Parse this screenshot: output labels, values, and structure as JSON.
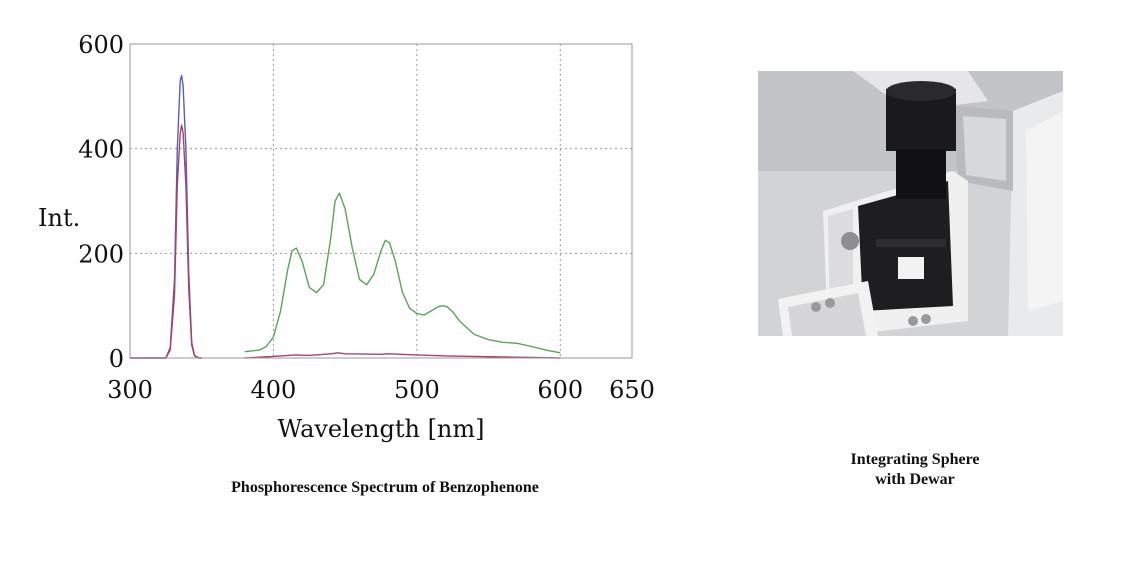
{
  "chart_data": {
    "type": "line",
    "title": "",
    "xlabel": "Wavelength [nm]",
    "ylabel": "Int.",
    "xlim": [
      300,
      650
    ],
    "ylim": [
      0,
      600
    ],
    "x_ticks": [
      300,
      400,
      500,
      600,
      650
    ],
    "y_ticks": [
      0,
      200,
      400,
      600
    ],
    "grid": true,
    "series": [
      {
        "color": "#5b5fa8",
        "x": [
          300,
          325,
          328,
          331,
          333,
          335,
          336,
          337,
          339,
          341,
          343,
          345,
          348,
          350
        ],
        "y": [
          0,
          0,
          20,
          150,
          400,
          530,
          540,
          520,
          400,
          160,
          30,
          5,
          0,
          0
        ]
      },
      {
        "color": "#a8426b",
        "x": [
          300,
          325,
          328,
          331,
          333,
          335,
          336,
          337,
          339,
          341,
          343,
          345,
          348,
          350
        ],
        "y": [
          0,
          0,
          15,
          120,
          330,
          430,
          445,
          430,
          330,
          130,
          25,
          4,
          0,
          0
        ]
      },
      {
        "color": "#5aa35a",
        "x": [
          380,
          390,
          395,
          400,
          405,
          410,
          413,
          416,
          420,
          425,
          430,
          435,
          440,
          443,
          446,
          450,
          455,
          460,
          465,
          470,
          475,
          478,
          481,
          485,
          490,
          495,
          500,
          505,
          510,
          515,
          518,
          521,
          525,
          530,
          540,
          550,
          560,
          570,
          580,
          590,
          600
        ],
        "y": [
          12,
          15,
          22,
          40,
          90,
          170,
          205,
          210,
          185,
          135,
          125,
          140,
          230,
          300,
          315,
          285,
          210,
          150,
          140,
          160,
          205,
          225,
          220,
          185,
          125,
          95,
          85,
          82,
          90,
          98,
          100,
          98,
          88,
          70,
          45,
          35,
          30,
          28,
          22,
          15,
          10
        ]
      },
      {
        "color": "#a8426b",
        "x": [
          380,
          400,
          415,
          425,
          440,
          445,
          450,
          475,
          480,
          500,
          520,
          540,
          560,
          580,
          600
        ],
        "y": [
          0,
          3,
          6,
          5,
          8,
          10,
          8,
          7,
          8,
          6,
          4,
          3,
          2,
          1,
          0
        ]
      }
    ]
  },
  "captions": {
    "chart": "Phosphorescence Spectrum  of Benzophenone",
    "photo_line1": "Integrating  Sphere",
    "photo_line2": "with Dewar"
  },
  "photo": {
    "subject": "integrating-sphere-with-dewar-photo",
    "colors": {
      "background": "#cccdd0",
      "dark": "#1a1a1c",
      "light": "#eeeeee"
    }
  }
}
